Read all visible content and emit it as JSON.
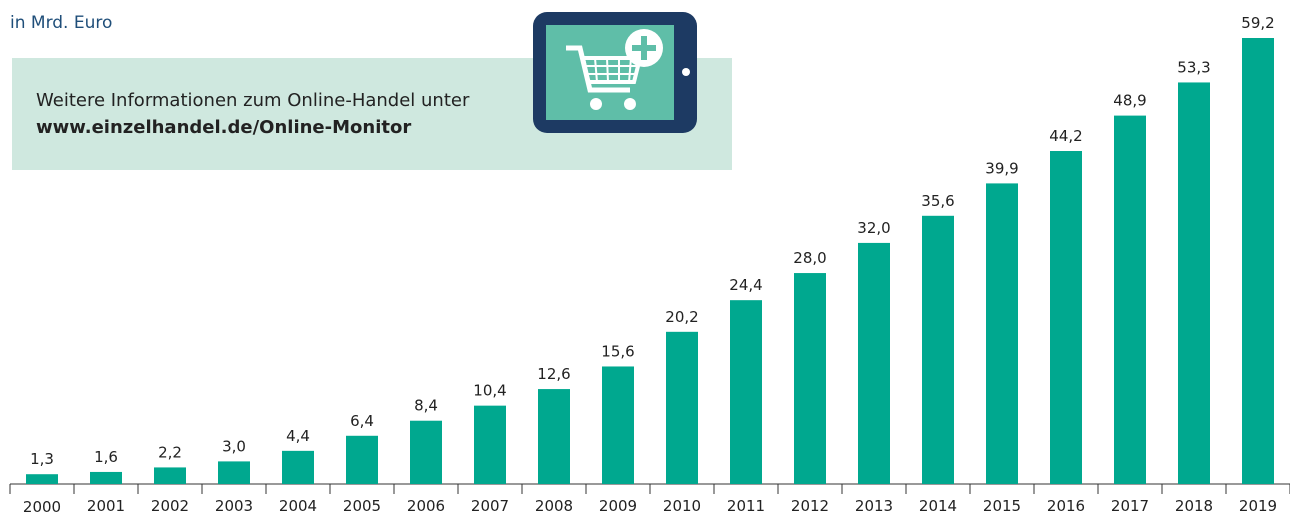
{
  "chart_data": {
    "type": "bar",
    "y_label": "in Mrd. Euro",
    "annotations": [
      "Weitere Informationen zum Online-Handel unter",
      "www.einzelhandel.de/Online-Monitor"
    ],
    "categories": [
      "2000",
      "2001",
      "2002",
      "2003",
      "2004",
      "2005",
      "2006",
      "2007",
      "2008",
      "2009",
      "2010",
      "2011",
      "2012",
      "2013",
      "2014",
      "2015",
      "2016",
      "2017",
      "2018",
      "2019"
    ],
    "values": [
      1.3,
      1.6,
      2.2,
      3.0,
      4.4,
      6.4,
      8.4,
      10.4,
      12.6,
      15.6,
      20.2,
      24.4,
      28.0,
      32.0,
      35.6,
      39.9,
      44.2,
      48.9,
      53.3,
      59.2
    ],
    "value_labels": [
      "1,3",
      "1,6",
      "2,2",
      "3,0",
      "4,4",
      "6,4",
      "8,4",
      "10,4",
      "12,6",
      "15,6",
      "20,2",
      "24,4",
      "28,0",
      "32,0",
      "35,6",
      "39,9",
      "44,2",
      "48,9",
      "53,3",
      "59,2"
    ],
    "color": "#00a88f"
  }
}
